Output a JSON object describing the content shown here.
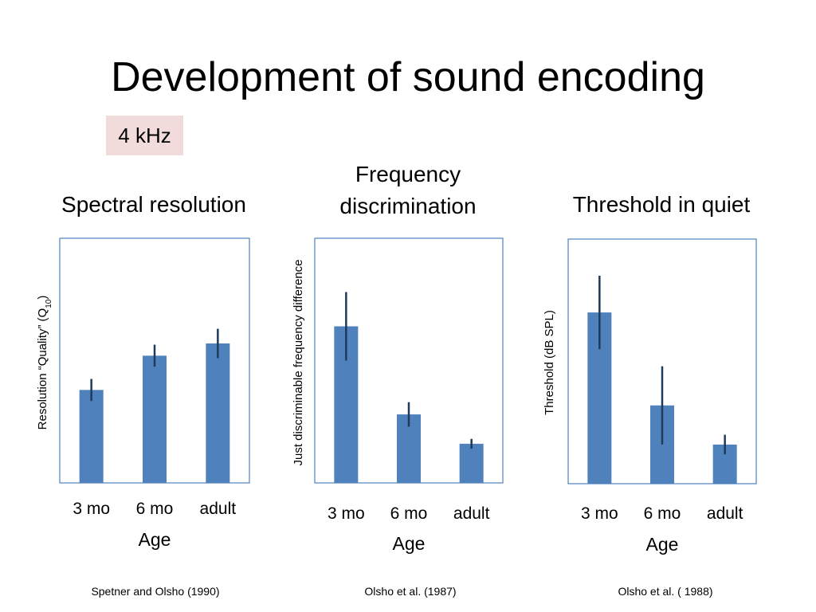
{
  "slide": {
    "title": "Development of sound encoding",
    "badge": "4 kHz"
  },
  "colors": {
    "bar": "#4f81bd",
    "error": "#1f3a5a",
    "frame": "#4f81bd"
  },
  "chart_data": [
    {
      "type": "bar",
      "title": "Spectral resolution",
      "categories": [
        "3 mo",
        "6 mo",
        "adult"
      ],
      "values": [
        38,
        52,
        57
      ],
      "errors": [
        4.5,
        4.5,
        6
      ],
      "xlabel": "Age",
      "ylabel_main": "Resolution “Quality” (Q",
      "ylabel_sub": "10",
      "ylabel_end": ")",
      "ylim": [
        0,
        100
      ],
      "grid": false,
      "source": "Spetner and Olsho (1990)"
    },
    {
      "type": "bar",
      "title_line1": "Frequency",
      "title_line2": "discrimination",
      "categories": [
        "3 mo",
        "6 mo",
        "adult"
      ],
      "values": [
        64,
        28,
        16
      ],
      "errors": [
        14,
        5,
        2
      ],
      "xlabel": "Age",
      "ylabel": "Just discriminable frequency difference",
      "ylim": [
        0,
        100
      ],
      "grid": false,
      "source": "Olsho et al. (1987)"
    },
    {
      "type": "bar",
      "title": "Threshold in quiet",
      "categories": [
        "3 mo",
        "6 mo",
        "adult"
      ],
      "values": [
        70,
        32,
        16
      ],
      "errors": [
        15,
        16,
        4
      ],
      "xlabel": "Age",
      "ylabel": "Threshold (dB SPL)",
      "ylim": [
        0,
        100
      ],
      "grid": false,
      "source": "Olsho et al. ( 1988)"
    }
  ]
}
